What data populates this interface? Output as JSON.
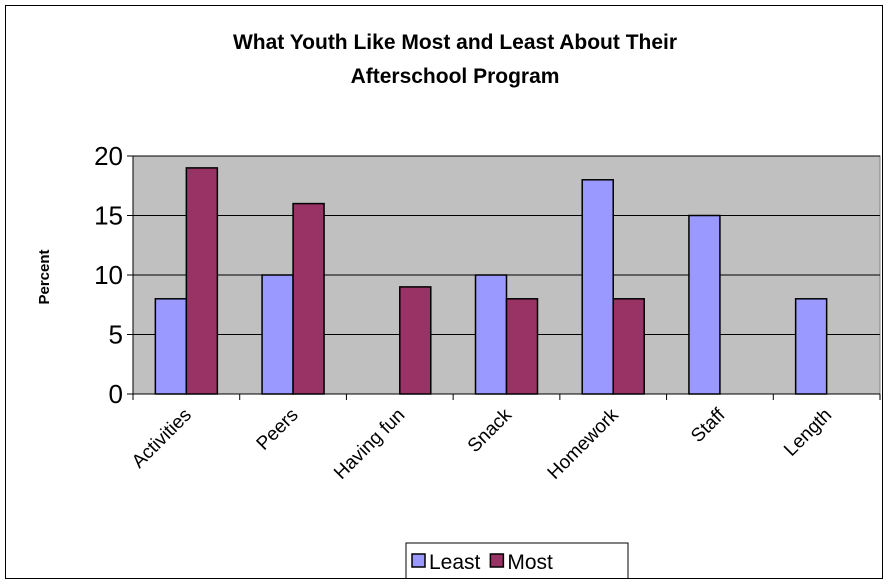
{
  "chart_data": {
    "type": "bar",
    "title_lines": [
      "What Youth Like Most and Least About Their",
      "Afterschool Program"
    ],
    "xlabel": "",
    "ylabel": "Percent",
    "ylim": [
      0,
      20
    ],
    "yticks": [
      0,
      5,
      10,
      15,
      20
    ],
    "grid": true,
    "legend_position": "bottom",
    "plot_background": "#c0c0c0",
    "categories": [
      "Activities",
      "Peers",
      "Having fun",
      "Snack",
      "Homework",
      "Staff",
      "Length"
    ],
    "series": [
      {
        "name": "Least",
        "color": "#9999ff",
        "values": [
          8,
          10,
          null,
          10,
          18,
          15,
          8
        ]
      },
      {
        "name": "Most",
        "color": "#993366",
        "values": [
          19,
          16,
          9,
          8,
          8,
          null,
          null
        ]
      }
    ]
  }
}
